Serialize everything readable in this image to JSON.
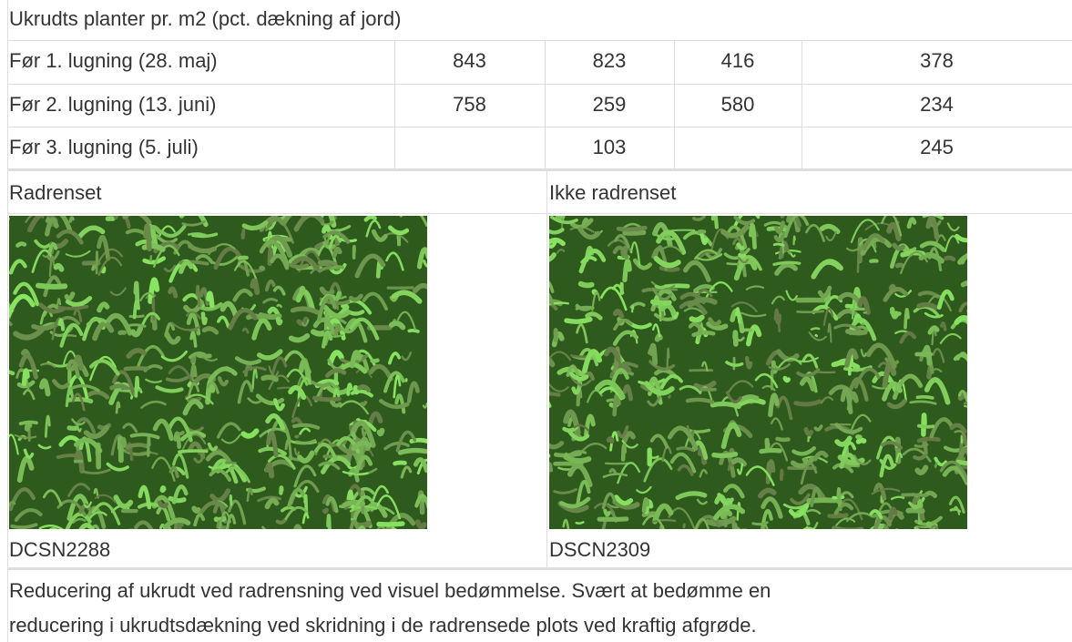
{
  "header": {
    "title": "Ukrudts planter pr. m2 (pct. dækning af jord)"
  },
  "table": {
    "rows": [
      [
        "Før 1. lugning (28. maj)",
        843,
        823,
        416,
        378
      ],
      [
        "Før 2. lugning (13. juni)",
        758,
        259,
        580,
        234
      ],
      [
        "Før 3. lugning (5. juli)",
        null,
        103,
        null,
        245
      ]
    ]
  },
  "photos": [
    {
      "label": "Radrenset",
      "caption": "DCSN2288"
    },
    {
      "label": "Ikke radrenset",
      "caption": "DSCN2309"
    }
  ],
  "description": {
    "lines": [
      "Reducering af ukrudt ved radrensning ved visuel bedømmelse. Svært at bedømme en",
      "reducering i ukrudtsdækning ved skridning i de radrensede plots ved kraftig afgrøde."
    ]
  }
}
